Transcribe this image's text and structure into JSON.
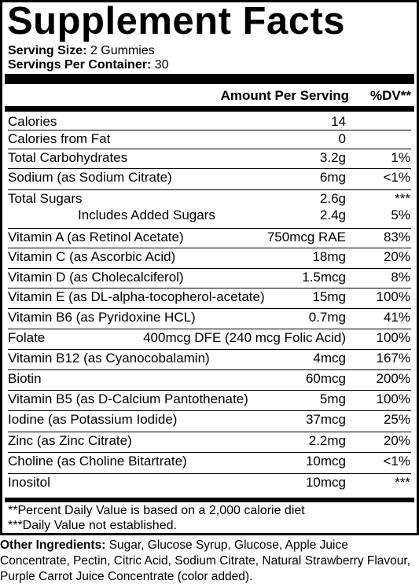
{
  "label": {
    "title": "Supplement Facts",
    "serving_size_label": "Serving Size:",
    "serving_size_value": "2 Gummies",
    "servings_per_container_label": "Servings Per Container:",
    "servings_per_container_value": "30",
    "header_amount": "Amount Per Serving",
    "header_dv": "%DV**",
    "rows": [
      {
        "name": "Calories",
        "amount": "14",
        "dv": ""
      },
      {
        "name": "Calories from Fat",
        "amount": "0",
        "dv": ""
      },
      {
        "name": "Total Carbohydrates",
        "amount": "3.2g",
        "dv": "1%"
      },
      {
        "name": "Sodium (as Sodium Citrate)",
        "amount": "6mg",
        "dv": "<1%"
      },
      {
        "name": "Total Sugars",
        "amount": "2.6g",
        "dv": "***",
        "sub_name": "Includes Added Sugars",
        "sub_amount": "2.4g",
        "sub_dv": "5%"
      },
      {
        "name": "Vitamin A (as Retinol Acetate)",
        "amount": "750mcg RAE",
        "dv": "83%"
      },
      {
        "name": "Vitamin C (as Ascorbic Acid)",
        "amount": "18mg",
        "dv": "20%"
      },
      {
        "name": "Vitamin D (as Cholecalciferol)",
        "amount": "1.5mcg",
        "dv": "8%"
      },
      {
        "name": "Vitamin E (as DL-alpha-tocopherol-acetate)",
        "amount": "15mg",
        "dv": "100%"
      },
      {
        "name": "Vitamin B6 (as Pyridoxine HCL)",
        "amount": "0.7mg",
        "dv": "41%"
      },
      {
        "name": "Folate",
        "amount": "400mcg DFE (240 mcg Folic Acid)",
        "dv": "100%"
      },
      {
        "name": "Vitamin B12 (as Cyanocobalamin)",
        "amount": "4mcg",
        "dv": "167%"
      },
      {
        "name": "Biotin",
        "amount": "60mcg",
        "dv": "200%"
      },
      {
        "name": "Vitamin B5 (as D-Calcium Pantothenate)",
        "amount": "5mg",
        "dv": "100%"
      },
      {
        "name": "Iodine (as Potassium Iodide)",
        "amount": "37mcg",
        "dv": "25%"
      },
      {
        "name": "Zinc (as Zinc Citrate)",
        "amount": "2.2mg",
        "dv": "20%"
      },
      {
        "name": "Choline (as Choline Bitartrate)",
        "amount": "10mcg",
        "dv": "<1%"
      },
      {
        "name": "Inositol",
        "amount": "10mcg",
        "dv": "***"
      }
    ],
    "footnote_1": "**Percent Daily Value is based on a 2,000 calorie diet",
    "footnote_2": "***Daily Value not established."
  },
  "ingredients": {
    "label": "Other Ingredients:",
    "text": "Sugar, Glucose Syrup, Glucose, Apple Juice Concentrate, Pectin, Citric Acid, Sodium Citrate, Natural Strawberry Flavour, Purple Carrot Juice Concentrate (color added)."
  }
}
